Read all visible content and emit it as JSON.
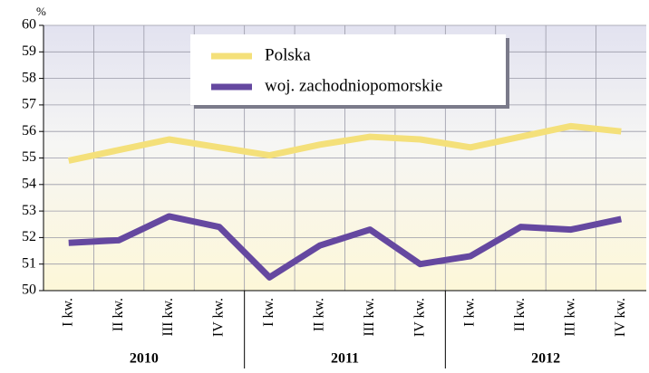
{
  "chart_data": {
    "type": "line",
    "y_label": "%",
    "categories": [
      "I kw.",
      "II kw.",
      "III kw.",
      "IV kw.",
      "I kw.",
      "II kw.",
      "III kw.",
      "IV kw.",
      "I kw.",
      "II kw.",
      "III kw.",
      "IV kw."
    ],
    "groups": [
      "2010",
      "2011",
      "2012"
    ],
    "series": [
      {
        "name": "Polska",
        "color": "#f4e07a",
        "values": [
          54.9,
          55.3,
          55.7,
          55.4,
          55.1,
          55.5,
          55.8,
          55.7,
          55.4,
          55.8,
          56.2,
          56.0
        ]
      },
      {
        "name": "woj. zachodniopomorskie",
        "color": "#6548a0",
        "values": [
          51.8,
          51.9,
          52.8,
          52.4,
          50.5,
          51.7,
          52.3,
          51.0,
          51.3,
          52.4,
          52.3,
          52.7
        ]
      }
    ],
    "ylim": [
      50,
      60
    ],
    "yticks": [
      50,
      51,
      52,
      53,
      54,
      55,
      56,
      57,
      58,
      59,
      60
    ],
    "grid": true,
    "legend": "top"
  }
}
